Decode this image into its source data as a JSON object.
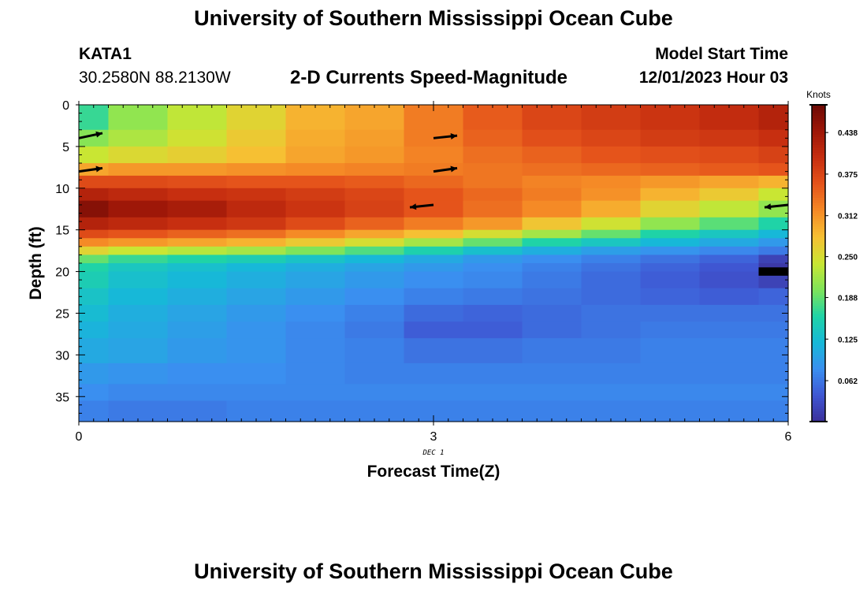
{
  "header": {
    "title": "University of Southern Mississippi Ocean Cube",
    "station": "KATA1",
    "coords": "30.2580N  88.2130W",
    "subtitle": "2-D Currents Speed-Magnitude",
    "model_start_label": "Model Start Time",
    "model_start_value": "12/01/2023 Hour 03"
  },
  "footer": {
    "title": "University of Southern Mississippi Ocean Cube"
  },
  "colors": {
    "stops": [
      "#3b2f9a",
      "#3f56d2",
      "#3a8ff0",
      "#17b8d8",
      "#1fd3a7",
      "#7ee45a",
      "#c9e633",
      "#f6c033",
      "#f58a26",
      "#e5541b",
      "#c72f10",
      "#9e1708",
      "#6e0a05"
    ],
    "arrow": "#000000",
    "black_cell": "#000000"
  },
  "chart_data": {
    "type": "heatmap",
    "title": "2-D Currents Speed-Magnitude",
    "xlabel": "Forecast Time(Z)",
    "ylabel": "Depth (ft)",
    "x_date_label": "DEC 1",
    "x_range": [
      0,
      6
    ],
    "y_range": [
      0,
      38
    ],
    "x_ticks": [
      0,
      3,
      6
    ],
    "x_tick_labels": [
      "0",
      "3",
      "6"
    ],
    "y_ticks": [
      0,
      5,
      10,
      15,
      20,
      25,
      30,
      35
    ],
    "y_tick_labels": [
      "0",
      "5",
      "10",
      "15",
      "20",
      "25",
      "30",
      "35"
    ],
    "time_edges": [
      0,
      0.25,
      0.75,
      1.25,
      1.75,
      2.25,
      2.75,
      3.25,
      3.75,
      4.25,
      4.75,
      5.25,
      5.75,
      6.0
    ],
    "depth_rows": [
      {
        "top": 0,
        "bottom": 3,
        "values": [
          0.17,
          0.21,
          0.235,
          0.26,
          0.29,
          0.3,
          0.33,
          0.355,
          0.375,
          0.385,
          0.395,
          0.405,
          0.42
        ]
      },
      {
        "top": 3,
        "bottom": 5,
        "values": [
          0.205,
          0.225,
          0.245,
          0.27,
          0.295,
          0.305,
          0.33,
          0.35,
          0.365,
          0.375,
          0.385,
          0.39,
          0.4
        ]
      },
      {
        "top": 5,
        "bottom": 7,
        "values": [
          0.24,
          0.255,
          0.265,
          0.28,
          0.3,
          0.31,
          0.325,
          0.34,
          0.35,
          0.36,
          0.365,
          0.37,
          0.38
        ]
      },
      {
        "top": 7,
        "bottom": 8.5,
        "values": [
          0.3,
          0.31,
          0.31,
          0.315,
          0.32,
          0.325,
          0.33,
          0.335,
          0.34,
          0.345,
          0.35,
          0.355,
          0.36
        ]
      },
      {
        "top": 8.5,
        "bottom": 10,
        "values": [
          0.37,
          0.37,
          0.365,
          0.36,
          0.36,
          0.355,
          0.345,
          0.335,
          0.325,
          0.32,
          0.31,
          0.3,
          0.29
        ]
      },
      {
        "top": 10,
        "bottom": 11.5,
        "values": [
          0.42,
          0.41,
          0.4,
          0.395,
          0.385,
          0.375,
          0.36,
          0.345,
          0.33,
          0.315,
          0.29,
          0.27,
          0.24
        ]
      },
      {
        "top": 11.5,
        "bottom": 13.5,
        "values": [
          0.46,
          0.44,
          0.43,
          0.41,
          0.395,
          0.38,
          0.36,
          0.34,
          0.32,
          0.295,
          0.26,
          0.235,
          0.21
        ]
      },
      {
        "top": 13.5,
        "bottom": 15,
        "values": [
          0.42,
          0.41,
          0.4,
          0.39,
          0.37,
          0.35,
          0.33,
          0.31,
          0.275,
          0.245,
          0.21,
          0.185,
          0.16
        ]
      },
      {
        "top": 15,
        "bottom": 16,
        "values": [
          0.37,
          0.36,
          0.35,
          0.34,
          0.32,
          0.3,
          0.28,
          0.25,
          0.22,
          0.19,
          0.16,
          0.14,
          0.12
        ]
      },
      {
        "top": 16,
        "bottom": 17,
        "values": [
          0.32,
          0.31,
          0.3,
          0.29,
          0.27,
          0.25,
          0.22,
          0.19,
          0.16,
          0.14,
          0.12,
          0.105,
          0.09
        ]
      },
      {
        "top": 17,
        "bottom": 18,
        "values": [
          0.26,
          0.24,
          0.23,
          0.22,
          0.2,
          0.18,
          0.155,
          0.13,
          0.11,
          0.095,
          0.085,
          0.075,
          0.065
        ]
      },
      {
        "top": 18,
        "bottom": 19,
        "values": [
          0.19,
          0.17,
          0.16,
          0.15,
          0.135,
          0.12,
          0.105,
          0.09,
          0.08,
          0.07,
          0.06,
          0.05,
          0.02
        ]
      },
      {
        "top": 19,
        "bottom": 20,
        "values": [
          0.16,
          0.14,
          0.13,
          0.12,
          0.11,
          0.1,
          0.09,
          0.08,
          0.07,
          0.06,
          0.05,
          0.04,
          0.01
        ]
      },
      {
        "top": 20,
        "bottom": 22,
        "values": [
          0.15,
          0.13,
          0.12,
          0.11,
          0.1,
          0.09,
          0.08,
          0.075,
          0.065,
          0.055,
          0.045,
          0.035,
          0.02
        ]
      },
      {
        "top": 22,
        "bottom": 24,
        "values": [
          0.135,
          0.12,
          0.11,
          0.1,
          0.09,
          0.08,
          0.07,
          0.065,
          0.06,
          0.055,
          0.05,
          0.045,
          0.05
        ]
      },
      {
        "top": 24,
        "bottom": 26,
        "values": [
          0.125,
          0.11,
          0.1,
          0.09,
          0.08,
          0.07,
          0.055,
          0.05,
          0.055,
          0.06,
          0.06,
          0.06,
          0.06
        ]
      },
      {
        "top": 26,
        "bottom": 28,
        "values": [
          0.115,
          0.105,
          0.095,
          0.085,
          0.075,
          0.065,
          0.045,
          0.045,
          0.055,
          0.06,
          0.065,
          0.065,
          0.065
        ]
      },
      {
        "top": 28,
        "bottom": 31,
        "values": [
          0.105,
          0.1,
          0.09,
          0.085,
          0.075,
          0.07,
          0.06,
          0.06,
          0.065,
          0.065,
          0.07,
          0.07,
          0.07
        ]
      },
      {
        "top": 31,
        "bottom": 33.5,
        "values": [
          0.09,
          0.085,
          0.08,
          0.08,
          0.075,
          0.07,
          0.07,
          0.07,
          0.07,
          0.07,
          0.07,
          0.07,
          0.07
        ]
      },
      {
        "top": 33.5,
        "bottom": 35.5,
        "values": [
          0.08,
          0.075,
          0.075,
          0.075,
          0.075,
          0.075,
          0.075,
          0.075,
          0.075,
          0.075,
          0.075,
          0.075,
          0.075
        ]
      },
      {
        "top": 35.5,
        "bottom": 38,
        "values": [
          0.07,
          0.065,
          0.065,
          0.07,
          0.07,
          0.07,
          0.07,
          0.07,
          0.07,
          0.07,
          0.07,
          0.07,
          0.07
        ]
      }
    ],
    "masked_cell": {
      "t0": 5.75,
      "t1": 6.0,
      "d0": 19.5,
      "d1": 20.5
    },
    "vectors": [
      {
        "t": 0.0,
        "depth": 4,
        "dt": 0.2,
        "dd": -0.6
      },
      {
        "t": 0.0,
        "depth": 8,
        "dt": 0.2,
        "dd": -0.4
      },
      {
        "t": 3.0,
        "depth": 4,
        "dt": 0.2,
        "dd": -0.3
      },
      {
        "t": 3.0,
        "depth": 8,
        "dt": 0.2,
        "dd": -0.4
      },
      {
        "t": 3.0,
        "depth": 12,
        "dt": -0.2,
        "dd": 0.3
      },
      {
        "t": 6.0,
        "depth": 12,
        "dt": -0.2,
        "dd": 0.3
      }
    ],
    "colorbar": {
      "unit": "Knots",
      "range": [
        0,
        0.48
      ],
      "ticks": [
        0.062,
        0.125,
        0.188,
        0.25,
        0.312,
        0.375,
        0.438
      ],
      "tick_labels": [
        "0.062",
        "0.125",
        "0.188",
        "0.250",
        "0.312",
        "0.375",
        "0.438"
      ]
    }
  }
}
